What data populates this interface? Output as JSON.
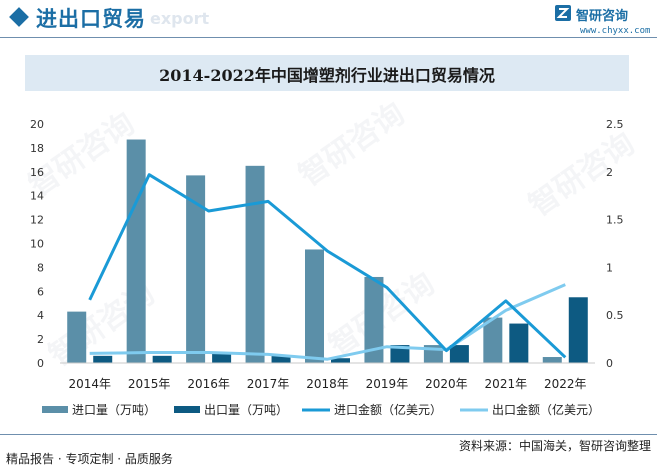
{
  "header": {
    "section_title": "进出口贸易",
    "section_title_en": "export",
    "brand_name": "智研咨询",
    "brand_url": "www.chyxx.com",
    "brand_color": "#1b6ea5"
  },
  "footer": {
    "source": "资料来源：中国海关，智研咨询整理",
    "tags": "精品报告 · 专项定制 · 品质服务"
  },
  "watermark_text": "智研咨询",
  "chart_data": {
    "type": "bar",
    "title": "2014-2022年中国增塑剂行业进出口贸易情况",
    "categories": [
      "2014年",
      "2015年",
      "2016年",
      "2017年",
      "2018年",
      "2019年",
      "2020年",
      "2021年",
      "2022年"
    ],
    "left_axis": {
      "min": 0,
      "max": 20,
      "step": 2,
      "ticks": [
        "0",
        "2",
        "4",
        "6",
        "8",
        "10",
        "12",
        "14",
        "16",
        "18",
        "20"
      ]
    },
    "right_axis": {
      "min": 0,
      "max": 2.5,
      "step": 0.5,
      "ticks": [
        "0",
        "0.5",
        "1",
        "1.5",
        "2",
        "2.5"
      ]
    },
    "grid": false,
    "legend_position": "bottom",
    "series": [
      {
        "name": "进口量（万吨）",
        "type": "bar",
        "axis": "left",
        "color": "#5b8fa8",
        "values": [
          4.3,
          18.7,
          15.7,
          16.5,
          9.5,
          7.2,
          1.5,
          3.8,
          0.5
        ]
      },
      {
        "name": "出口量（万吨）",
        "type": "bar",
        "axis": "left",
        "color": "#0d5a82",
        "values": [
          0.6,
          0.6,
          0.9,
          0.6,
          0.4,
          1.5,
          1.5,
          3.3,
          5.5
        ]
      },
      {
        "name": "进口金额（亿美元）",
        "type": "line",
        "axis": "right",
        "color": "#1a9ad6",
        "values": [
          0.66,
          1.97,
          1.59,
          1.69,
          1.17,
          0.79,
          0.13,
          0.65,
          0.06
        ]
      },
      {
        "name": "出口金额（亿美元）",
        "type": "line",
        "axis": "right",
        "color": "#7fcbef",
        "values": [
          0.1,
          0.11,
          0.11,
          0.09,
          0.04,
          0.17,
          0.14,
          0.55,
          0.82
        ]
      }
    ]
  }
}
